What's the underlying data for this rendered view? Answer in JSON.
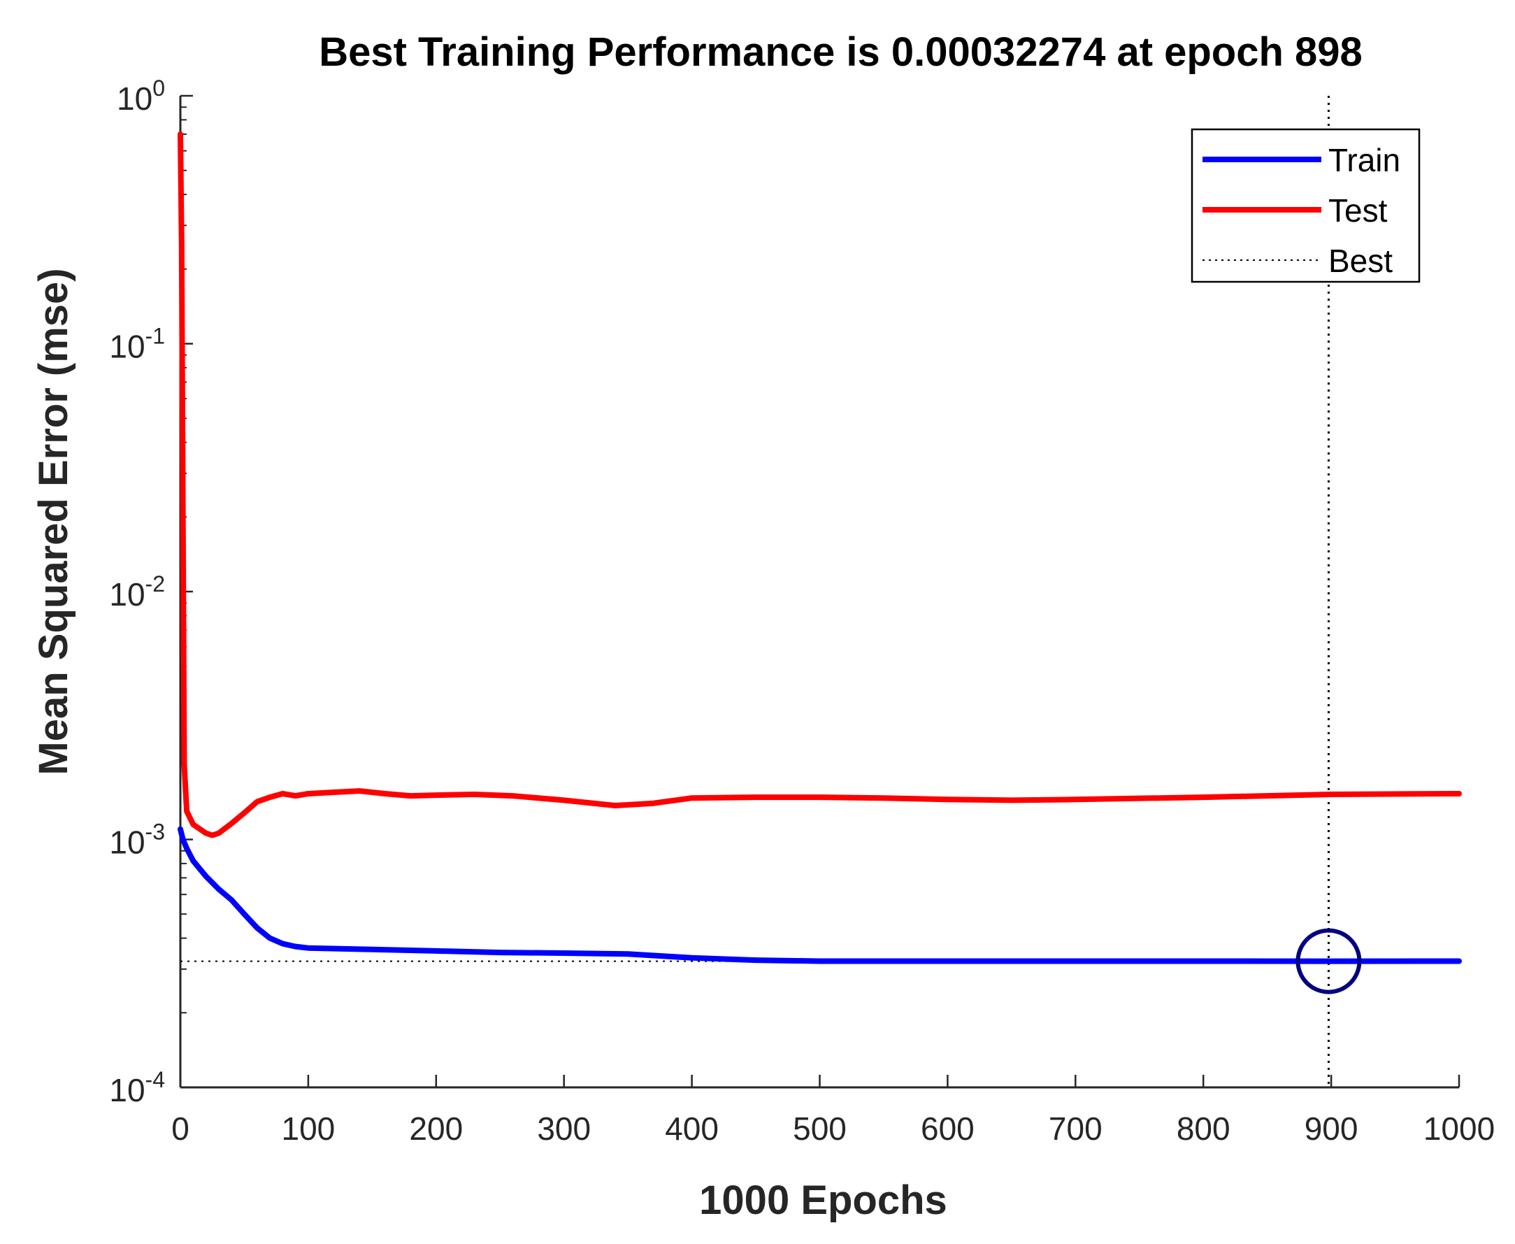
{
  "chart_data": {
    "type": "line",
    "title": "Best Training Performance is 0.00032274 at epoch 898",
    "xlabel": "1000 Epochs",
    "ylabel": "Mean Squared Error  (mse)",
    "xlim": [
      0,
      1000
    ],
    "ylim": [
      0.0001,
      1
    ],
    "y_scale": "log",
    "x_ticks": [
      0,
      100,
      200,
      300,
      400,
      500,
      600,
      700,
      800,
      900,
      1000
    ],
    "y_ticks": [
      {
        "value": 0.0001,
        "base": "10",
        "exp": "-4"
      },
      {
        "value": 0.001,
        "base": "10",
        "exp": "-3"
      },
      {
        "value": 0.01,
        "base": "10",
        "exp": "-2"
      },
      {
        "value": 0.1,
        "base": "10",
        "exp": "-1"
      },
      {
        "value": 1,
        "base": "10",
        "exp": "0"
      }
    ],
    "grid": false,
    "legend_position": "top-right",
    "series": [
      {
        "name": "Train",
        "color": "#0000ff",
        "style": "solid",
        "x": [
          0,
          2,
          5,
          10,
          20,
          30,
          40,
          50,
          60,
          70,
          80,
          90,
          100,
          150,
          200,
          250,
          300,
          350,
          400,
          450,
          500,
          600,
          700,
          800,
          898,
          1000
        ],
        "y": [
          0.0011,
          0.001,
          0.00092,
          0.00082,
          0.00071,
          0.00063,
          0.00057,
          0.0005,
          0.00044,
          0.0004,
          0.00038,
          0.00037,
          0.000365,
          0.00036,
          0.000355,
          0.00035,
          0.000348,
          0.000345,
          0.000333,
          0.000326,
          0.000323,
          0.000323,
          0.000323,
          0.000323,
          0.00032274,
          0.000323
        ]
      },
      {
        "name": "Test",
        "color": "#ff0000",
        "style": "solid",
        "x": [
          0,
          1,
          2,
          3,
          5,
          10,
          20,
          25,
          30,
          40,
          50,
          60,
          70,
          80,
          90,
          100,
          120,
          140,
          160,
          180,
          200,
          230,
          260,
          300,
          340,
          370,
          400,
          450,
          500,
          550,
          600,
          650,
          700,
          800,
          900,
          1000
        ],
        "y": [
          0.7,
          0.25,
          0.02,
          0.002,
          0.0013,
          0.00115,
          0.00106,
          0.00104,
          0.00106,
          0.00116,
          0.00128,
          0.00142,
          0.00148,
          0.00153,
          0.0015,
          0.00153,
          0.00155,
          0.00157,
          0.00153,
          0.0015,
          0.00151,
          0.00152,
          0.0015,
          0.00144,
          0.00137,
          0.0014,
          0.00147,
          0.00148,
          0.00148,
          0.00147,
          0.00145,
          0.00144,
          0.00145,
          0.00148,
          0.00152,
          0.00153
        ]
      },
      {
        "name": "Best",
        "style": "dotted",
        "color": "#000000",
        "best_epoch": 898,
        "best_value": 0.00032274
      }
    ]
  }
}
